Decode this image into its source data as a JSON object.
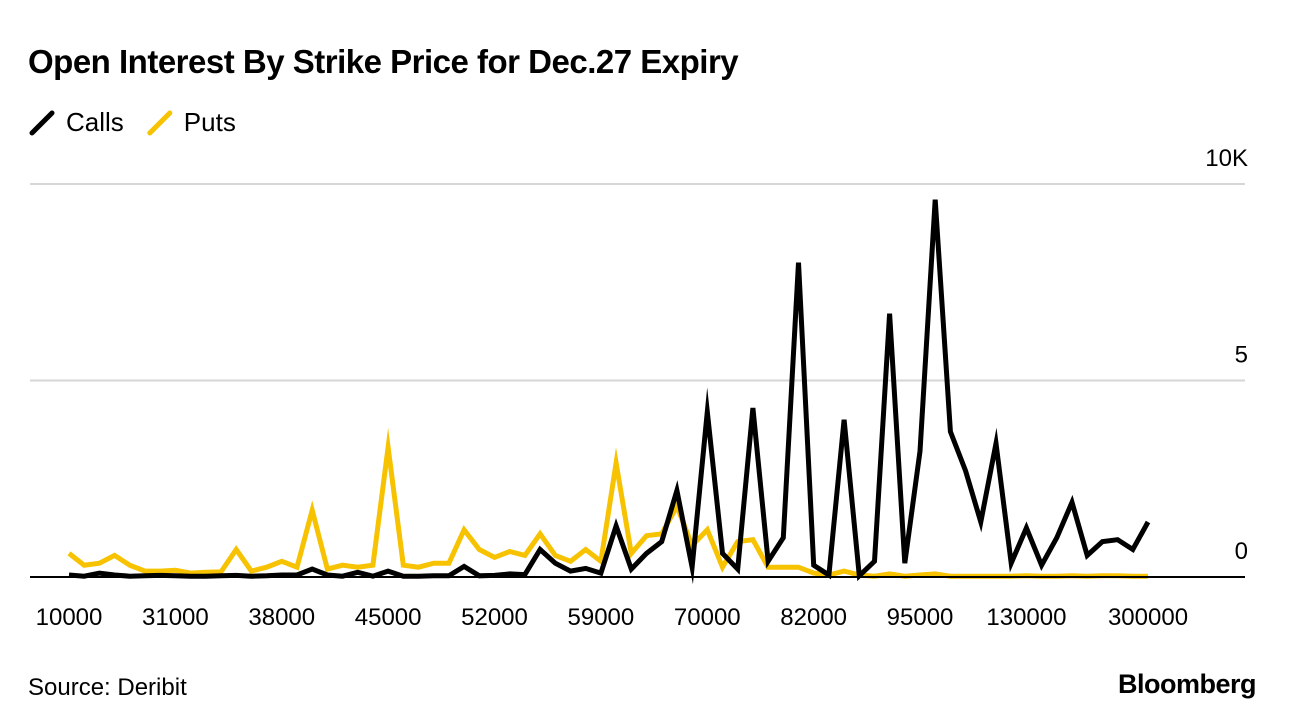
{
  "chart_data": {
    "type": "line",
    "title": "Open Interest By Strike Price for Dec.27 Expiry",
    "source": "Source: Deribit",
    "brand": "Bloomberg",
    "categories": [
      "10000",
      null,
      null,
      null,
      null,
      null,
      null,
      "31000",
      null,
      null,
      null,
      null,
      null,
      null,
      "38000",
      null,
      null,
      null,
      null,
      null,
      null,
      "45000",
      null,
      null,
      null,
      null,
      null,
      null,
      "52000",
      null,
      null,
      null,
      null,
      null,
      null,
      "59000",
      null,
      null,
      null,
      null,
      null,
      null,
      "70000",
      null,
      null,
      null,
      null,
      null,
      null,
      "82000",
      null,
      null,
      null,
      null,
      null,
      null,
      "95000",
      null,
      null,
      null,
      null,
      null,
      null,
      "130000",
      null,
      null,
      null,
      null,
      null,
      null,
      null,
      "300000"
    ],
    "series": [
      {
        "name": "Calls",
        "color": "#000000",
        "values": [
          0.05,
          0.02,
          0.1,
          0.05,
          0.02,
          0.03,
          0.04,
          0.03,
          0.02,
          0.02,
          0.03,
          0.04,
          0.02,
          0.03,
          0.05,
          0.05,
          0.2,
          0.05,
          0.02,
          0.12,
          0.02,
          0.15,
          0.02,
          0.02,
          0.03,
          0.03,
          0.27,
          0.03,
          0.04,
          0.08,
          0.06,
          0.7,
          0.35,
          0.15,
          0.22,
          0.1,
          1.3,
          0.2,
          0.6,
          0.9,
          2.2,
          0.25,
          4.2,
          0.6,
          0.2,
          4.3,
          0.4,
          1.0,
          8.0,
          0.3,
          0.05,
          4.0,
          0.03,
          0.4,
          6.7,
          0.35,
          3.2,
          9.6,
          3.7,
          2.7,
          1.4,
          3.4,
          0.35,
          1.25,
          0.3,
          1.0,
          1.9,
          0.55,
          0.9,
          0.95,
          0.7,
          1.4
        ]
      },
      {
        "name": "Puts",
        "color": "#f7c200",
        "values": [
          0.6,
          0.3,
          0.35,
          0.55,
          0.3,
          0.15,
          0.15,
          0.17,
          0.1,
          0.12,
          0.13,
          0.7,
          0.15,
          0.25,
          0.4,
          0.25,
          1.7,
          0.2,
          0.3,
          0.25,
          0.3,
          3.3,
          0.3,
          0.25,
          0.35,
          0.35,
          1.2,
          0.7,
          0.5,
          0.65,
          0.55,
          1.1,
          0.55,
          0.4,
          0.7,
          0.4,
          2.9,
          0.6,
          1.05,
          1.1,
          1.8,
          0.8,
          1.2,
          0.25,
          0.9,
          0.95,
          0.25,
          0.25,
          0.25,
          0.1,
          0.05,
          0.15,
          0.05,
          0.02,
          0.08,
          0.02,
          0.05,
          0.08,
          0.02,
          0.02,
          0.02,
          0.02,
          0.02,
          0.03,
          0.02,
          0.02,
          0.03,
          0.02,
          0.03,
          0.03,
          0.02,
          0.02
        ]
      }
    ],
    "ylim": [
      0,
      10
    ],
    "yticks": [
      0,
      5,
      {
        "value": 10,
        "label": "10K"
      }
    ],
    "grid": true
  }
}
